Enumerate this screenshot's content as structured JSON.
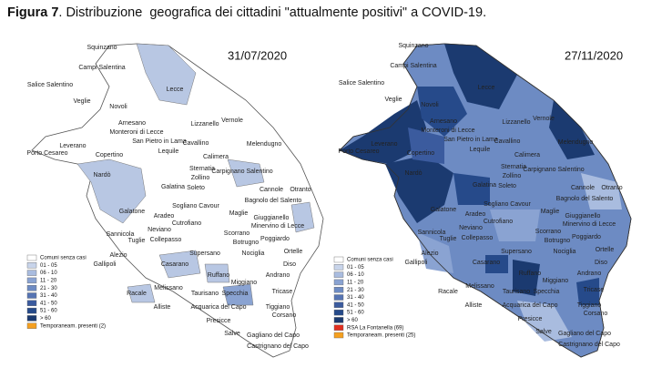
{
  "title": {
    "bold": "Figura 7",
    "rest": ". Distribuzione  geografica dei cittadini \"attualmente positivi\" a COVID-19."
  },
  "maps": [
    {
      "date": "31/07/2020",
      "legend": [
        {
          "label": "Comuni senza casi",
          "color": "#ffffff"
        },
        {
          "label": "01 - 05",
          "color": "#c8d4ea"
        },
        {
          "label": "06 - 10",
          "color": "#a9bcdf"
        },
        {
          "label": "11 - 20",
          "color": "#8aa3d2"
        },
        {
          "label": "21 - 30",
          "color": "#6d8bc3"
        },
        {
          "label": "31 - 40",
          "color": "#5674b3"
        },
        {
          "label": "41 - 50",
          "color": "#3b5b9e"
        },
        {
          "label": "51 - 60",
          "color": "#264a8a"
        },
        {
          "label": "> 60",
          "color": "#1b3a70"
        },
        {
          "label": "Temporaneam. presenti (2)",
          "color": "#f5a020"
        }
      ]
    },
    {
      "date": "27/11/2020",
      "legend": [
        {
          "label": "Comuni senza casi",
          "color": "#ffffff"
        },
        {
          "label": "01 - 05",
          "color": "#c8d4ea"
        },
        {
          "label": "06 - 10",
          "color": "#a9bcdf"
        },
        {
          "label": "11 - 20",
          "color": "#8aa3d2"
        },
        {
          "label": "21 - 30",
          "color": "#6d8bc3"
        },
        {
          "label": "31 - 40",
          "color": "#5674b3"
        },
        {
          "label": "41 - 50",
          "color": "#3b5b9e"
        },
        {
          "label": "51 - 60",
          "color": "#264a8a"
        },
        {
          "label": "> 60",
          "color": "#1b3a70"
        },
        {
          "label": "RSA La Fontanella (69)",
          "color": "#e03020"
        },
        {
          "label": "Temporaneam. presenti (25)",
          "color": "#f5a020"
        }
      ]
    }
  ],
  "towns": [
    "Squinzano",
    "Campi Salentina",
    "Salice Salentino",
    "Novoli",
    "Lecce",
    "Veglie",
    "Arnesano",
    "Monteroni di Lecce",
    "Lizzanello",
    "Vernole",
    "San Pietro in Lama",
    "Cavallino",
    "Melendugno",
    "Leverano",
    "Copertino",
    "Lequile",
    "Porto Cesareo",
    "Calimera",
    "Sternatia",
    "Carpignano Salentino",
    "Nardò",
    "Zollino",
    "Galatina",
    "Soleto",
    "Cannole",
    "Otranto",
    "Bagnolo del Salento",
    "Sogliano Cavour",
    "Galatone",
    "Aradeo",
    "Cutrofiano",
    "Maglie",
    "Giuggianello",
    "Minervino di Lecce",
    "Neviano",
    "Sannicola",
    "Tuglie",
    "Collepasso",
    "Scorrano",
    "Botrugno",
    "Poggiardo",
    "Supersano",
    "Nociglia",
    "Ortelle",
    "Alezio",
    "Gallipoli",
    "Casarano",
    "Diso",
    "Andrano",
    "Ruffano",
    "Melissano",
    "Miggiano",
    "Racale",
    "Taurisano",
    "Specchia",
    "Tricase",
    "Alliste",
    "Acquarica del Capo",
    "Tiggiano",
    "Corsano",
    "Presicce",
    "Salve",
    "Gagliano del Capo",
    "Castrignano del Capo"
  ]
}
